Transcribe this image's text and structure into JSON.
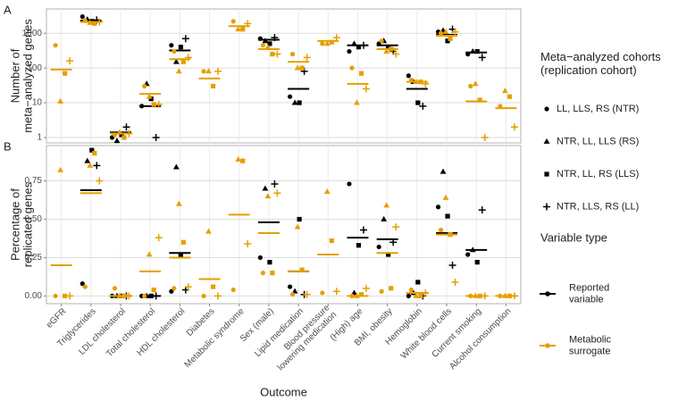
{
  "legend": {
    "cohort_title": [
      "Meta−analyzed cohorts",
      "(replication cohort)"
    ],
    "cohorts": [
      {
        "name": "LL, LLS, RS (NTR)",
        "shape": "circle"
      },
      {
        "name": "NTR, LL, LLS (RS)",
        "shape": "triangle"
      },
      {
        "name": "NTR, LL, RS (LLS)",
        "shape": "square"
      },
      {
        "name": "NTR, LLS, RS (LL)",
        "shape": "plus"
      }
    ],
    "variable_title": "Variable type"
  },
  "chart_data": [
    {
      "type": "dot",
      "tag": "A",
      "ylabel": [
        "Number of",
        "meta−analyzed genes"
      ],
      "log_scale": true,
      "grid": true,
      "ylim": [
        0.7,
        5000
      ],
      "yticks": [
        1,
        10,
        100,
        1000
      ],
      "series": [
        {
          "name": [
            "Reported",
            "variable"
          ],
          "color": "#000000",
          "values": [
            [
              null,
              3000,
              1.0,
              8,
              450,
              null,
              null,
              700,
              15,
              null,
              300,
              500,
              60,
              1100,
              250,
              null
            ],
            [
              null,
              2500,
              0.8,
              35,
              150,
              null,
              null,
              600,
              10,
              null,
              500,
              600,
              40,
              1200,
              300,
              null
            ],
            [
              null,
              2200,
              1.2,
              13,
              400,
              null,
              null,
              500,
              10,
              null,
              400,
              400,
              10,
              600,
              300,
              null
            ],
            [
              null,
              2400,
              2.0,
              1,
              700,
              null,
              null,
              750,
              80,
              null,
              450,
              300,
              8,
              1300,
              200,
              null
            ]
          ],
          "means": [
            null,
            2300,
            1.4,
            8,
            320,
            null,
            null,
            650,
            25,
            null,
            450,
            450,
            25,
            900,
            280,
            null
          ]
        },
        {
          "name": [
            "Metabolic",
            "surrogate"
          ],
          "color": "#E69F00",
          "values": [
            [
              450,
              2300,
              1.2,
              30,
              300,
              80,
              2200,
              450,
              250,
              500,
              100,
              600,
              45,
              1000,
              30,
              8
            ],
            [
              11,
              2000,
              1.4,
              15,
              80,
              80,
              1300,
              400,
              100,
              500,
              10,
              300,
              40,
              1100,
              35,
              22
            ],
            [
              70,
              1900,
              1.0,
              9,
              150,
              30,
              1300,
              250,
              100,
              550,
              70,
              350,
              40,
              700,
              12,
              15
            ],
            [
              160,
              2100,
              1.3,
              9,
              200,
              80,
              1900,
              250,
              200,
              750,
              25,
              250,
              35,
              1100,
              1,
              2
            ]
          ],
          "means": [
            90,
            2100,
            1.3,
            18,
            180,
            50,
            1600,
            350,
            150,
            600,
            35,
            350,
            40,
            850,
            11,
            7
          ]
        }
      ]
    },
    {
      "type": "dot",
      "tag": "B",
      "ylabel": [
        "Percentage of",
        "replicated genes"
      ],
      "xlabel": "Outcome",
      "grid": true,
      "categories": [
        "eGFR",
        "Triglycerides",
        "LDL cholesterol",
        "Total cholesterol",
        "HDL cholesterol",
        "Diabetes",
        "Metabolic syndrome",
        "Sex (male)",
        "Lipid medication",
        [
          "Blood pressure",
          "lowering medication"
        ],
        "(High) age",
        "BMI, obesity",
        "Hemoglobin",
        "White blood cells",
        "Current smoking",
        "Alcohol consumption"
      ],
      "ylim": [
        -0.05,
        0.98
      ],
      "yticks": [
        {
          "value": 0,
          "label": "0.00"
        },
        {
          "value": 0.25,
          "label": "0.25"
        },
        {
          "value": 0.5,
          "label": "0.50"
        },
        {
          "value": 0.75,
          "label": "0.75"
        }
      ],
      "series": [
        {
          "color": "#000000",
          "values": [
            [
              null,
              0.08,
              0,
              0,
              0.03,
              null,
              null,
              0.25,
              0.06,
              null,
              0.73,
              0.32,
              0,
              0.58,
              0.27,
              null
            ],
            [
              null,
              0.88,
              0,
              0,
              0.84,
              null,
              null,
              0.7,
              0.03,
              null,
              0.02,
              0.5,
              0.02,
              0.81,
              0.3,
              null
            ],
            [
              null,
              0.95,
              0,
              0,
              0.26,
              null,
              null,
              0.22,
              0.5,
              null,
              0.33,
              0.27,
              0.09,
              0.52,
              0.22,
              null
            ],
            [
              null,
              0.85,
              0,
              0,
              0.04,
              null,
              null,
              0.73,
              0.01,
              null,
              0.43,
              0.35,
              0,
              0.2,
              0.56,
              null
            ]
          ],
          "means": [
            null,
            0.69,
            0,
            0,
            0.28,
            null,
            null,
            0.48,
            0.16,
            null,
            0.38,
            0.37,
            0.02,
            0.41,
            0.3,
            null
          ]
        },
        {
          "color": "#E69F00",
          "values": [
            [
              0,
              0.06,
              0.05,
              0,
              0.05,
              0,
              0.04,
              0.15,
              0.01,
              0.02,
              0,
              0.03,
              0.04,
              0.43,
              0,
              0
            ],
            [
              0.82,
              0.85,
              0,
              0.27,
              0.6,
              0.42,
              0.89,
              0.65,
              0.45,
              0.68,
              0,
              0.59,
              0,
              0.64,
              0,
              0
            ],
            [
              0,
              0.93,
              0,
              0.04,
              0.35,
              0.06,
              0.88,
              0.15,
              0.17,
              0.36,
              0.01,
              0.05,
              0,
              0.4,
              0,
              0
            ],
            [
              0,
              0.75,
              0,
              0.38,
              0.06,
              0,
              0.34,
              0.67,
              0.01,
              0.03,
              0.05,
              0.45,
              0.02,
              0.09,
              0,
              0
            ]
          ],
          "means": [
            0.2,
            0.67,
            0,
            0.16,
            0.25,
            0.11,
            0.53,
            0.41,
            0.16,
            0.27,
            0,
            0.28,
            0.02,
            0.4,
            0,
            0
          ]
        }
      ]
    }
  ]
}
